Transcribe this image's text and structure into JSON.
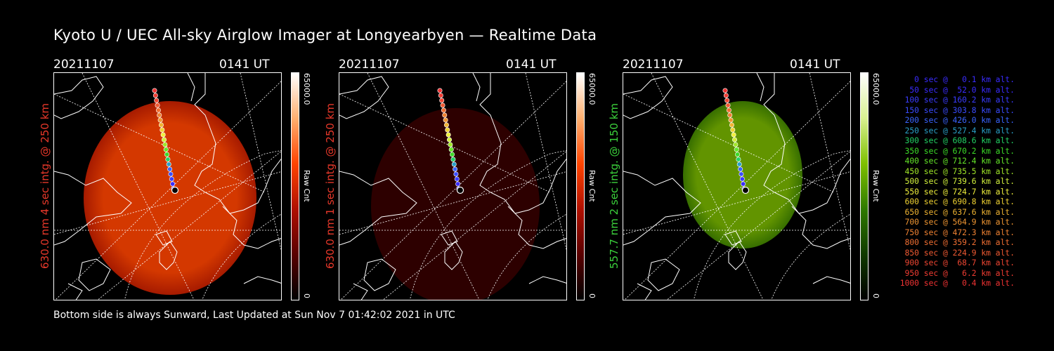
{
  "title": "Kyoto U / UEC All-sky Airglow Imager at Longyearbyen — Realtime Data",
  "footer": "Bottom side is always Sunward, Last Updated at Sun Nov  7 01:42:02 2021 in UTC",
  "chart_data": [
    {
      "type": "heatmap",
      "date": "20211107",
      "time": "0141 UT",
      "ylabel": "630.0 nm 4 sec intg. @ 250 km",
      "ylabel_color": "#e8382a",
      "colorbar_label": "Raw Cnt",
      "colorbar_max": "65000.0",
      "colorbar_min": "0",
      "colorscale": [
        "#000000",
        "#5a0000",
        "#b01000",
        "#ff4400",
        "#ffb070",
        "#ffffff"
      ],
      "image_intensity": 0.8
    },
    {
      "type": "heatmap",
      "date": "20211107",
      "time": "0141 UT",
      "ylabel": "630.0 nm 1 sec intg. @ 250 km",
      "ylabel_color": "#e8382a",
      "colorbar_label": "Raw Cnt",
      "colorbar_max": "65000.0",
      "colorbar_min": "0",
      "colorscale": [
        "#000000",
        "#5a0000",
        "#b01000",
        "#ff4400",
        "#ffb070",
        "#ffffff"
      ],
      "image_intensity": 0.25
    },
    {
      "type": "heatmap",
      "date": "20211107",
      "time": "0141 UT",
      "ylabel": "557.7 nm 2 sec intg. @ 150 km",
      "ylabel_color": "#3cd23c",
      "colorbar_label": "Raw Cnt",
      "colorbar_max": "65000.0",
      "colorbar_min": "0",
      "colorscale": [
        "#000000",
        "#103a00",
        "#2f7a00",
        "#7fc000",
        "#d8f090",
        "#ffffff"
      ],
      "image_intensity": 0.7
    }
  ],
  "legend": [
    {
      "text": "0 sec @   0.1 km alt.",
      "color": "#3a2cff"
    },
    {
      "text": "50 sec @  52.0 km alt.",
      "color": "#3a2cff"
    },
    {
      "text": "100 sec @ 160.2 km alt.",
      "color": "#3a3cff"
    },
    {
      "text": "150 sec @ 303.8 km alt.",
      "color": "#3a4cff"
    },
    {
      "text": "200 sec @ 426.0 km alt.",
      "color": "#3a64ff"
    },
    {
      "text": "250 sec @ 527.4 km alt.",
      "color": "#2aa0c8"
    },
    {
      "text": "300 sec @ 608.6 km alt.",
      "color": "#22d264"
    },
    {
      "text": "350 sec @ 670.2 km alt.",
      "color": "#3cdc28"
    },
    {
      "text": "400 sec @ 712.4 km alt.",
      "color": "#64e628"
    },
    {
      "text": "450 sec @ 735.5 km alt.",
      "color": "#a0e628"
    },
    {
      "text": "500 sec @ 739.6 km alt.",
      "color": "#d2f03c"
    },
    {
      "text": "550 sec @ 724.7 km alt.",
      "color": "#f0f03c"
    },
    {
      "text": "600 sec @ 690.8 km alt.",
      "color": "#f0d232"
    },
    {
      "text": "650 sec @ 637.6 km alt.",
      "color": "#f0b432"
    },
    {
      "text": "700 sec @ 564.9 km alt.",
      "color": "#f09632"
    },
    {
      "text": "750 sec @ 472.3 km alt.",
      "color": "#f08232"
    },
    {
      "text": "800 sec @ 359.2 km alt.",
      "color": "#f06e32"
    },
    {
      "text": "850 sec @ 224.9 km alt.",
      "color": "#f05a32"
    },
    {
      "text": "900 sec @  68.7 km alt.",
      "color": "#f04632"
    },
    {
      "text": "950 sec @   6.2 km alt.",
      "color": "#f03c32"
    },
    {
      "text": "1000 sec @   0.4 km alt.",
      "color": "#f03232"
    }
  ]
}
